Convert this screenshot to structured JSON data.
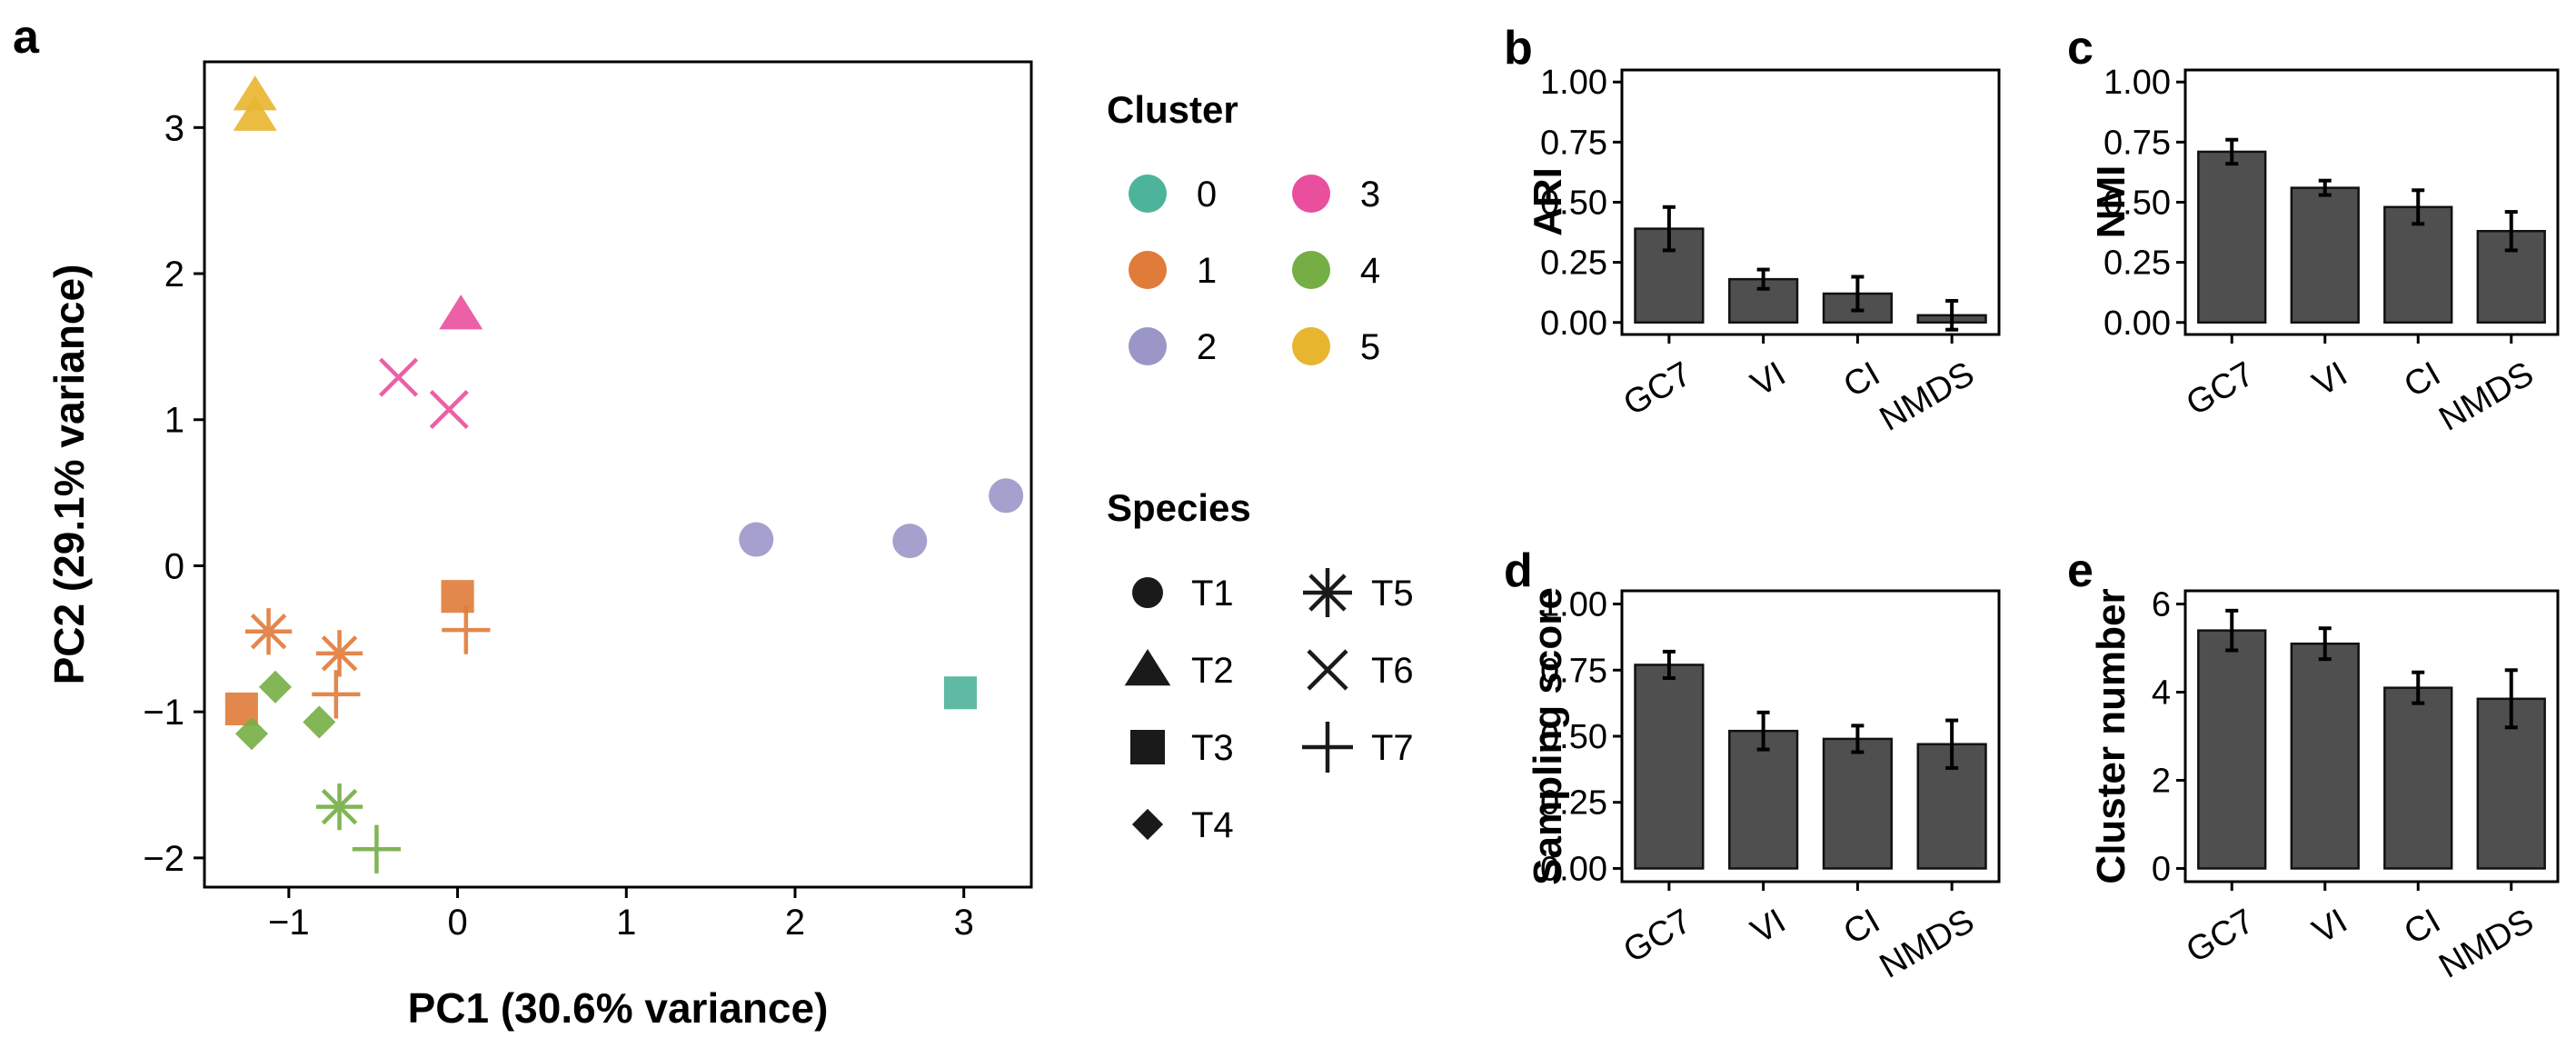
{
  "panels": {
    "a": "a",
    "b": "b",
    "c": "c",
    "d": "d",
    "e": "e"
  },
  "chart_data": [
    {
      "id": "a",
      "type": "scatter",
      "xlabel": "PC1 (30.6% variance)",
      "ylabel": "PC2 (29.1% variance)",
      "xlim": [
        -1.5,
        3.4
      ],
      "ylim": [
        -2.2,
        3.45
      ],
      "xticks": [
        -1,
        0,
        1,
        2,
        3
      ],
      "xtick_labels": [
        "−1",
        "0",
        "1",
        "2",
        "3"
      ],
      "yticks": [
        -2,
        -1,
        0,
        1,
        2,
        3
      ],
      "ytick_labels": [
        "−2",
        "−1",
        "0",
        "1",
        "2",
        "3"
      ],
      "cluster_colors": {
        "0": "#4db39a",
        "1": "#e07b39",
        "2": "#9b96c8",
        "3": "#e94f9d",
        "4": "#74ae44",
        "5": "#e8b52e"
      },
      "legend_cluster_title": "Cluster",
      "legend_clusters": [
        "0",
        "1",
        "2",
        "3",
        "4",
        "5"
      ],
      "legend_species_title": "Species",
      "legend_species": [
        {
          "label": "T1",
          "shape": "circle"
        },
        {
          "label": "T2",
          "shape": "triangle"
        },
        {
          "label": "T3",
          "shape": "square"
        },
        {
          "label": "T4",
          "shape": "diamond"
        },
        {
          "label": "T5",
          "shape": "asterisk"
        },
        {
          "label": "T6",
          "shape": "cross"
        },
        {
          "label": "T7",
          "shape": "plus"
        }
      ],
      "points": [
        {
          "x": -1.2,
          "y": 3.22,
          "species": "T2",
          "cluster": "5"
        },
        {
          "x": -1.2,
          "y": 3.08,
          "species": "T2",
          "cluster": "5"
        },
        {
          "x": 0.02,
          "y": 1.72,
          "species": "T2",
          "cluster": "3"
        },
        {
          "x": -0.35,
          "y": 1.29,
          "species": "T6",
          "cluster": "3"
        },
        {
          "x": -0.05,
          "y": 1.07,
          "species": "T6",
          "cluster": "3"
        },
        {
          "x": 1.77,
          "y": 0.18,
          "species": "T1",
          "cluster": "2"
        },
        {
          "x": 2.68,
          "y": 0.17,
          "species": "T1",
          "cluster": "2"
        },
        {
          "x": 3.25,
          "y": 0.48,
          "species": "T1",
          "cluster": "2"
        },
        {
          "x": 2.98,
          "y": -0.87,
          "species": "T3",
          "cluster": "0"
        },
        {
          "x": 0.0,
          "y": -0.21,
          "species": "T3",
          "cluster": "1"
        },
        {
          "x": 0.05,
          "y": -0.44,
          "species": "T7",
          "cluster": "1"
        },
        {
          "x": -1.12,
          "y": -0.45,
          "species": "T5",
          "cluster": "1"
        },
        {
          "x": -0.7,
          "y": -0.6,
          "species": "T5",
          "cluster": "1"
        },
        {
          "x": -0.72,
          "y": -0.88,
          "species": "T7",
          "cluster": "1"
        },
        {
          "x": -1.28,
          "y": -0.98,
          "species": "T3",
          "cluster": "1"
        },
        {
          "x": -1.08,
          "y": -0.83,
          "species": "T4",
          "cluster": "4"
        },
        {
          "x": -1.22,
          "y": -1.15,
          "species": "T4",
          "cluster": "4"
        },
        {
          "x": -0.82,
          "y": -1.07,
          "species": "T4",
          "cluster": "4"
        },
        {
          "x": -0.7,
          "y": -1.65,
          "species": "T5",
          "cluster": "4"
        },
        {
          "x": -0.48,
          "y": -1.94,
          "species": "T7",
          "cluster": "4"
        }
      ]
    },
    {
      "id": "b",
      "type": "bar",
      "ylabel": "ARI",
      "categories": [
        "GC7",
        "VI",
        "CI",
        "NMDS"
      ],
      "values": [
        0.39,
        0.18,
        0.12,
        0.03
      ],
      "errors": [
        0.09,
        0.04,
        0.07,
        0.06
      ],
      "ylim": [
        -0.05,
        1.05
      ],
      "yticks": [
        0,
        0.25,
        0.5,
        0.75,
        1.0
      ],
      "ytick_labels": [
        "0.00",
        "0.25",
        "0.50",
        "0.75",
        "1.00"
      ],
      "bar_color": "#4f4f4f"
    },
    {
      "id": "c",
      "type": "bar",
      "ylabel": "NMI",
      "categories": [
        "GC7",
        "VI",
        "CI",
        "NMDS"
      ],
      "values": [
        0.71,
        0.56,
        0.48,
        0.38
      ],
      "errors": [
        0.05,
        0.03,
        0.07,
        0.08
      ],
      "ylim": [
        -0.05,
        1.05
      ],
      "yticks": [
        0,
        0.25,
        0.5,
        0.75,
        1.0
      ],
      "ytick_labels": [
        "0.00",
        "0.25",
        "0.50",
        "0.75",
        "1.00"
      ],
      "bar_color": "#4f4f4f"
    },
    {
      "id": "d",
      "type": "bar",
      "ylabel": "Sampling score",
      "categories": [
        "GC7",
        "VI",
        "CI",
        "NMDS"
      ],
      "values": [
        0.77,
        0.52,
        0.49,
        0.47
      ],
      "errors": [
        0.05,
        0.07,
        0.05,
        0.09
      ],
      "ylim": [
        -0.05,
        1.05
      ],
      "yticks": [
        0,
        0.25,
        0.5,
        0.75,
        1.0
      ],
      "ytick_labels": [
        "0.00",
        "0.25",
        "0.50",
        "0.75",
        "1.00"
      ],
      "bar_color": "#4f4f4f"
    },
    {
      "id": "e",
      "type": "bar",
      "ylabel": "Cluster number",
      "categories": [
        "GC7",
        "VI",
        "CI",
        "NMDS"
      ],
      "values": [
        5.4,
        5.1,
        4.1,
        3.85
      ],
      "errors": [
        0.45,
        0.35,
        0.35,
        0.65
      ],
      "ylim": [
        -0.3,
        6.3
      ],
      "yticks": [
        0,
        2,
        4,
        6
      ],
      "ytick_labels": [
        "0",
        "2",
        "4",
        "6"
      ],
      "bar_color": "#4f4f4f"
    }
  ]
}
